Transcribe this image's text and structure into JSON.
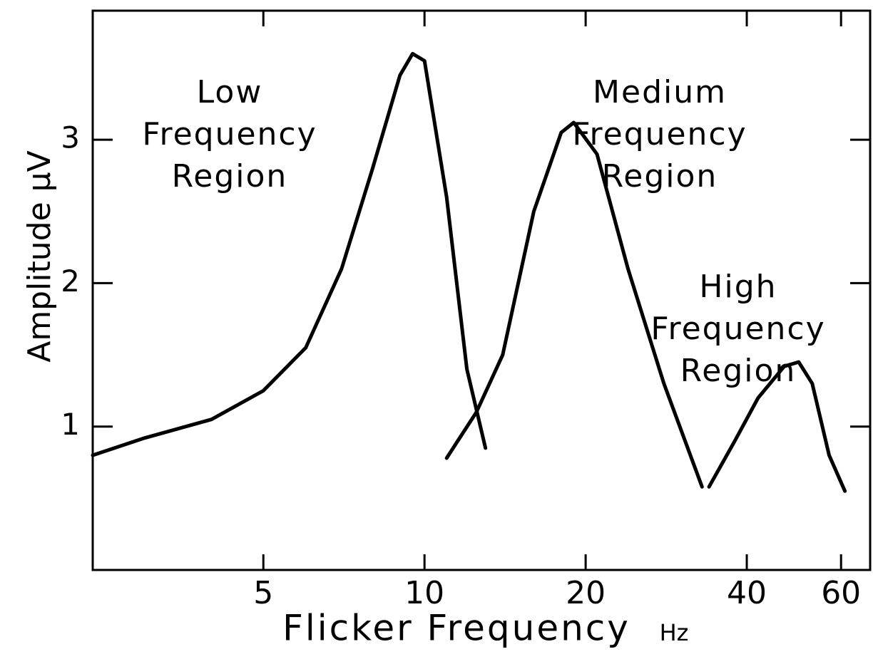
{
  "chart_data": {
    "type": "line",
    "xlabel": "Flicker Frequency",
    "xlabel_unit": "Hz",
    "ylabel": "Amplitude μV",
    "xscale": "log",
    "xlim": [
      2.4,
      68
    ],
    "xticks": [
      5,
      10,
      20,
      40,
      60
    ],
    "ylim": [
      0,
      3.9
    ],
    "yticks": [
      1,
      2,
      3
    ],
    "annotations": [
      [
        "Low",
        "Frequency",
        "Region"
      ],
      [
        "Medium",
        "Frequency",
        "Region"
      ],
      [
        "High",
        "Frequency",
        "Region"
      ]
    ],
    "series": [
      {
        "color": "#000000",
        "x": [
          2.4,
          3,
          4,
          5,
          6,
          7,
          8,
          9,
          9.5,
          10,
          11,
          12,
          13
        ],
        "values": [
          0.8,
          0.92,
          1.05,
          1.25,
          1.55,
          2.1,
          2.8,
          3.45,
          3.6,
          3.55,
          2.6,
          1.4,
          0.85
        ]
      },
      {
        "color": "#000000",
        "x": [
          11,
          12.5,
          14,
          16,
          18,
          19,
          21,
          24,
          28,
          33
        ],
        "values": [
          0.78,
          1.1,
          1.5,
          2.5,
          3.05,
          3.12,
          2.9,
          2.1,
          1.3,
          0.58
        ]
      },
      {
        "color": "#000000",
        "x": [
          34,
          38,
          42,
          47,
          50,
          53,
          57,
          61
        ],
        "values": [
          0.58,
          0.9,
          1.2,
          1.42,
          1.45,
          1.3,
          0.8,
          0.55
        ]
      }
    ]
  }
}
